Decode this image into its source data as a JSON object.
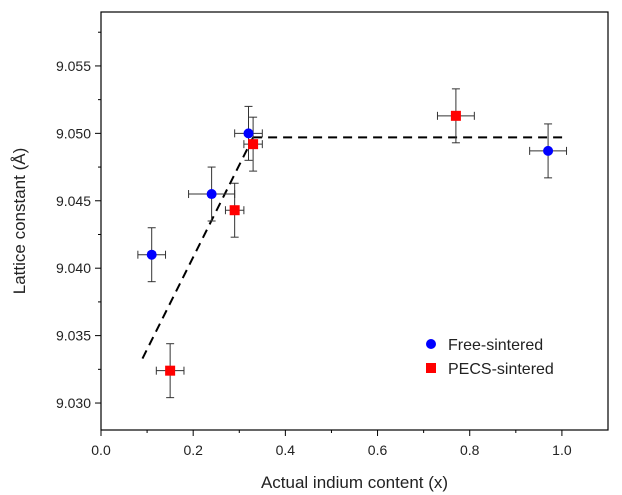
{
  "chart_data": {
    "type": "scatter",
    "xlabel": "Actual indium content (x)",
    "ylabel": "Lattice constant (Å)",
    "xlim": [
      0.0,
      1.1
    ],
    "ylim": [
      9.028,
      9.059
    ],
    "x_ticks": [
      "0.0",
      "0.2",
      "0.4",
      "0.6",
      "0.8",
      "1.0"
    ],
    "y_ticks": [
      "9.030",
      "9.035",
      "9.040",
      "9.045",
      "9.050",
      "9.055"
    ],
    "legend_position": "bottom-right",
    "series": [
      {
        "name": "Free-sintered",
        "color": "#0000ff",
        "marker": "circle",
        "points": [
          {
            "x": 0.11,
            "y": 9.041,
            "xerr": 0.03,
            "yerr": 0.002
          },
          {
            "x": 0.24,
            "y": 9.0455,
            "xerr": 0.05,
            "yerr": 0.002
          },
          {
            "x": 0.32,
            "y": 9.05,
            "xerr": 0.03,
            "yerr": 0.002
          },
          {
            "x": 0.97,
            "y": 9.0487,
            "xerr": 0.04,
            "yerr": 0.002
          }
        ]
      },
      {
        "name": "PECS-sintered",
        "color": "#ff0000",
        "marker": "square",
        "points": [
          {
            "x": 0.15,
            "y": 9.0324,
            "xerr": 0.03,
            "yerr": 0.002
          },
          {
            "x": 0.29,
            "y": 9.0443,
            "xerr": 0.02,
            "yerr": 0.002
          },
          {
            "x": 0.33,
            "y": 9.0492,
            "xerr": 0.02,
            "yerr": 0.002
          },
          {
            "x": 0.77,
            "y": 9.0513,
            "xerr": 0.04,
            "yerr": 0.002
          }
        ]
      }
    ],
    "trend_lines": [
      {
        "style": "dashed",
        "color": "#000000",
        "points": [
          [
            0.09,
            9.0333
          ],
          [
            0.33,
            9.0497
          ]
        ]
      },
      {
        "style": "dashed",
        "color": "#000000",
        "points": [
          [
            0.33,
            9.0497
          ],
          [
            1.01,
            9.0497
          ]
        ]
      }
    ]
  }
}
